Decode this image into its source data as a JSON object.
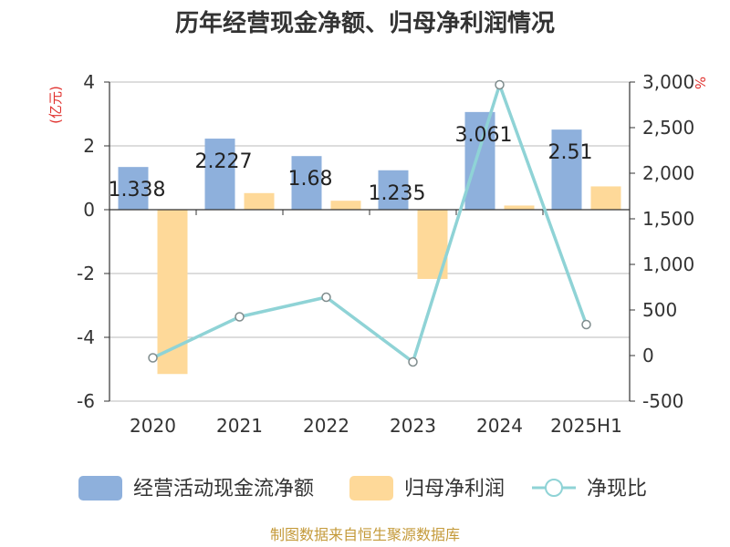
{
  "chart_data": {
    "type": "bar",
    "title": "历年经营现金净额、归母净利润情况",
    "categories": [
      "2020",
      "2021",
      "2022",
      "2023",
      "2024",
      "2025H1"
    ],
    "left_axis": {
      "unit": "(亿元)",
      "ylim": [
        -6,
        4
      ],
      "ticks": [
        "4",
        "2",
        "0",
        "-2",
        "-4",
        "-6"
      ],
      "tick_values": [
        4,
        2,
        0,
        -2,
        -4,
        -6
      ]
    },
    "right_axis": {
      "unit": "%",
      "ylim": [
        -500,
        3000
      ],
      "ticks": [
        "3,000",
        "2,500",
        "2,000",
        "1,500",
        "1,000",
        "500",
        "0",
        "-500"
      ],
      "tick_values": [
        3000,
        2500,
        2000,
        1500,
        1000,
        500,
        0,
        -500
      ]
    },
    "series": [
      {
        "name": "经营活动现金流净额",
        "type": "bar",
        "axis": "left",
        "color": "#8eb0dc",
        "values": [
          1.338,
          2.227,
          1.68,
          1.235,
          3.061,
          2.51
        ],
        "labels": [
          "1.338",
          "2.227",
          "1.68",
          "1.235",
          "3.061",
          "2.51"
        ]
      },
      {
        "name": "归母净利润",
        "type": "bar",
        "axis": "left",
        "color": "#fed999",
        "values": [
          -5.15,
          0.52,
          0.28,
          -2.17,
          0.13,
          0.73
        ]
      },
      {
        "name": "净现比",
        "type": "line",
        "axis": "right",
        "color": "#8fd3d6",
        "values": [
          -25,
          425,
          640,
          -70,
          2970,
          340
        ]
      }
    ],
    "grid": true,
    "legend_position": "bottom"
  },
  "source": "制图数据来自恒生聚源数据库"
}
